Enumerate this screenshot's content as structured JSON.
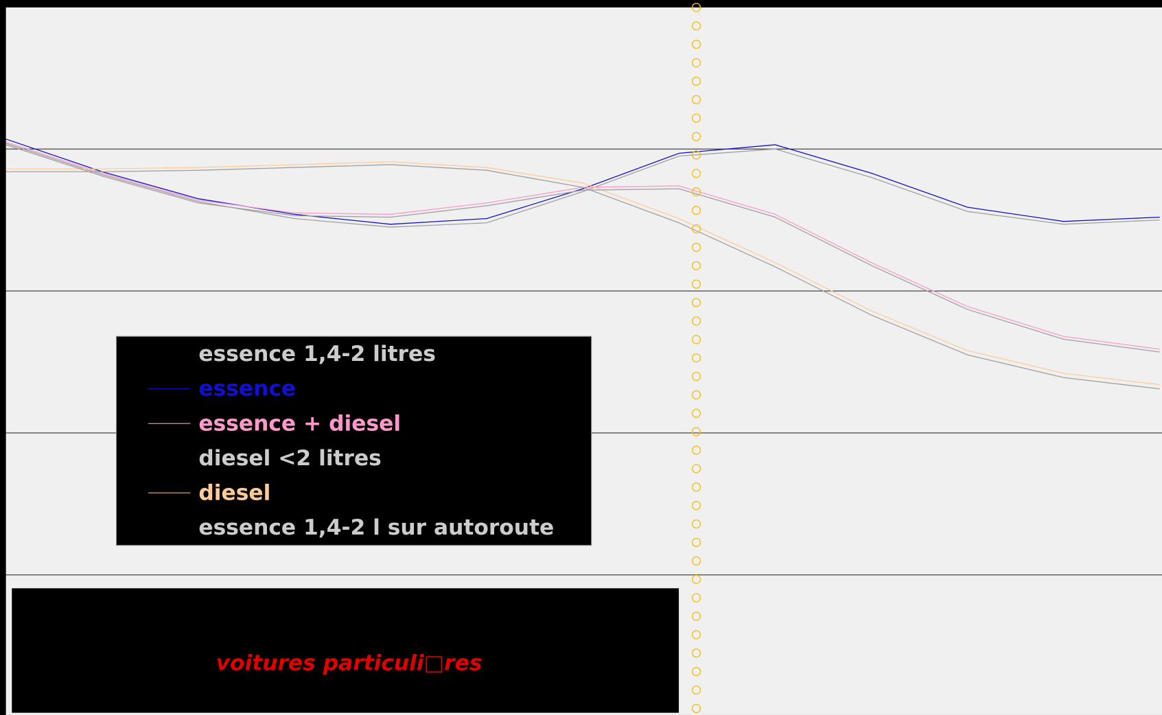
{
  "chart_data": {
    "type": "line",
    "title": "voitures particuli□res",
    "x": [
      0,
      1,
      2,
      3,
      4,
      5,
      6,
      7,
      8,
      9,
      10,
      11,
      12
    ],
    "xlim": [
      0,
      12
    ],
    "ylim": [
      0,
      5
    ],
    "yticks": [
      1,
      2,
      3,
      4
    ],
    "grid": true,
    "cursor_x": 7.18,
    "cursor_color": "#f0c020",
    "legend": "lower left",
    "series": [
      {
        "name": "essence 1,4-2 litres",
        "color": "#a0a0a0",
        "values": [
          4.04,
          3.82,
          3.63,
          3.51,
          3.45,
          3.48,
          3.7,
          3.95,
          4.0,
          3.8,
          3.56,
          3.47,
          3.5
        ]
      },
      {
        "name": "essence",
        "color": "#1010d0",
        "values": [
          4.07,
          3.84,
          3.65,
          3.54,
          3.47,
          3.51,
          3.72,
          3.97,
          4.03,
          3.83,
          3.59,
          3.49,
          3.52
        ]
      },
      {
        "name": "essence + diesel",
        "color": "#ff99cc",
        "values": [
          4.05,
          3.83,
          3.64,
          3.55,
          3.54,
          3.62,
          3.73,
          3.74,
          3.54,
          3.2,
          2.89,
          2.68,
          2.59
        ]
      },
      {
        "name": "diesel <2 litres",
        "color": "#a0a0a0",
        "values": [
          3.84,
          3.84,
          3.85,
          3.87,
          3.89,
          3.85,
          3.73,
          3.48,
          3.17,
          2.83,
          2.55,
          2.39,
          2.31
        ]
      },
      {
        "name": "diesel",
        "color": "#ffcc99",
        "values": [
          3.86,
          3.86,
          3.87,
          3.89,
          3.91,
          3.87,
          3.76,
          3.51,
          3.2,
          2.86,
          2.58,
          2.42,
          2.34
        ]
      },
      {
        "name": "essence 1,4-2 l sur autoroute",
        "color": "#a0a0a0",
        "values": [
          4.03,
          3.81,
          3.62,
          3.53,
          3.52,
          3.6,
          3.71,
          3.72,
          3.52,
          3.18,
          2.87,
          2.66,
          2.57
        ]
      }
    ]
  }
}
